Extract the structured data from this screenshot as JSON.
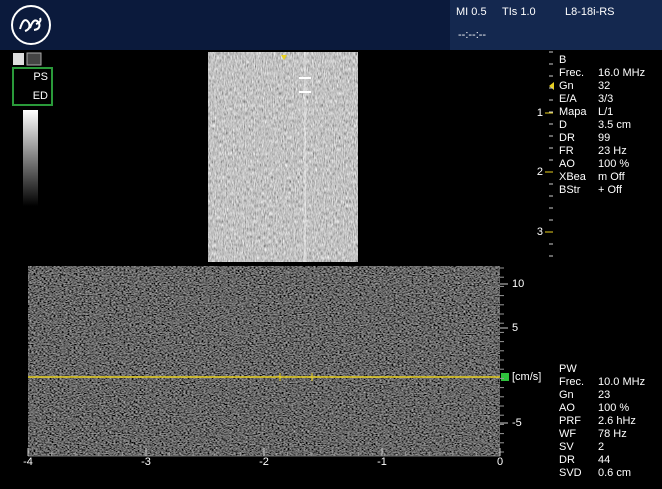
{
  "header": {
    "mi": "MI 0.5",
    "tis": "TIs 1.0",
    "probe": "L8-18i-RS",
    "time": "--:--:--"
  },
  "left_panel": {
    "labels": [
      "PS",
      "ED"
    ]
  },
  "bmode": {
    "depth_labels": [
      "1",
      "2",
      "3"
    ],
    "params": {
      "title": "B",
      "rows": [
        [
          "Frec.",
          "16.0 MHz"
        ],
        [
          "Gn",
          "32"
        ],
        [
          "E/A",
          "3/3"
        ],
        [
          "Mapa",
          "L/1"
        ],
        [
          "D",
          "3.5 cm"
        ],
        [
          "DR",
          "99"
        ],
        [
          "FR",
          "23 Hz"
        ],
        [
          "AO",
          "100 %"
        ],
        [
          "XBea",
          "m Off"
        ],
        [
          "BStr",
          "+ Off"
        ]
      ]
    }
  },
  "doppler": {
    "velocity_labels": [
      "10",
      "5",
      "[cm/s]",
      "-5"
    ],
    "time_labels": [
      "-4",
      "-3",
      "-2",
      "-1",
      "0"
    ],
    "params": {
      "title": "PW",
      "rows": [
        [
          "Frec.",
          "10.0 MHz"
        ],
        [
          "Gn",
          "23"
        ],
        [
          "AO",
          "100 %"
        ],
        [
          "PRF",
          "2.6 hHz"
        ],
        [
          "WF",
          "78 Hz"
        ],
        [
          "SV",
          "2"
        ],
        [
          "DR",
          "44"
        ],
        [
          "SVD",
          "0.6 cm"
        ]
      ]
    }
  }
}
